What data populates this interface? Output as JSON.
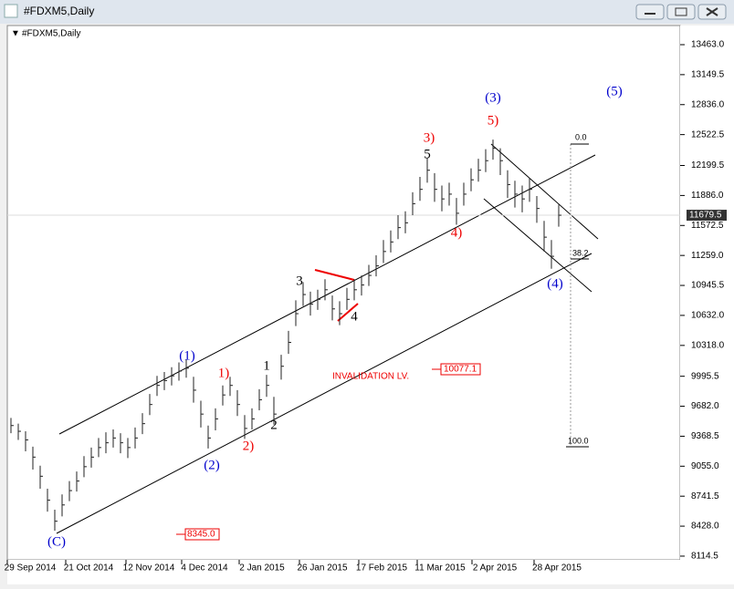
{
  "window_title": "#FDXM5,Daily",
  "chart_data": {
    "type": "ohlc",
    "title": "#FDXM5,Daily",
    "categories": [
      "29 Sep 2014",
      "21 Oct 2014",
      "12 Nov 2014",
      "4 Dec 2014",
      "2 Jan 2015",
      "26 Jan 2015",
      "17 Feb 2015",
      "11 Mar 2015",
      "2 Apr 2015",
      "28 Apr 2015"
    ],
    "close": [
      9480,
      9420,
      9330,
      9150,
      8950,
      8700,
      8480,
      8650,
      8800,
      8900,
      9050,
      9150,
      9250,
      9300,
      9350,
      9300,
      9250,
      9350,
      9500,
      9700,
      9900,
      9950,
      10000,
      10050,
      10080,
      9850,
      9600,
      9350,
      9550,
      9800,
      9900,
      9700,
      9450,
      9550,
      9750,
      9900,
      9600,
      10100,
      10350,
      10650,
      10850,
      10750,
      10800,
      10900,
      10700,
      10650,
      10800,
      10900,
      10950,
      11050,
      11150,
      11300,
      11400,
      11550,
      11600,
      11800,
      11950,
      12150,
      11950,
      11850,
      11900,
      11700,
      11900,
      12050,
      12150,
      12250,
      12380,
      12250,
      12000,
      11900,
      11850,
      11950,
      11750,
      11450,
      11250,
      11679.5
    ],
    "high": [
      9560,
      9500,
      9420,
      9260,
      9060,
      8820,
      8600,
      8760,
      8900,
      9000,
      9160,
      9250,
      9350,
      9410,
      9440,
      9400,
      9350,
      9460,
      9610,
      9810,
      10000,
      10040,
      10090,
      10140,
      10170,
      9990,
      9740,
      9480,
      9660,
      9900,
      9990,
      9850,
      9590,
      9660,
      9860,
      10010,
      9780,
      10220,
      10470,
      10790,
      10980,
      10880,
      10900,
      11010,
      10840,
      10780,
      10920,
      11010,
      11050,
      11160,
      11260,
      11420,
      11520,
      11680,
      11720,
      11920,
      12080,
      12280,
      12120,
      11990,
      12020,
      11860,
      12020,
      12170,
      12270,
      12370,
      12470,
      12380,
      12150,
      12040,
      11990,
      12070,
      11880,
      11620,
      11420,
      11790
    ],
    "low": [
      9400,
      9330,
      9210,
      9020,
      8820,
      8580,
      8380,
      8530,
      8690,
      8790,
      8940,
      9040,
      9150,
      9190,
      9250,
      9190,
      9140,
      9240,
      9390,
      9590,
      9790,
      9850,
      9900,
      9950,
      9980,
      9720,
      9460,
      9240,
      9430,
      9690,
      9790,
      9580,
      9340,
      9440,
      9640,
      9780,
      9490,
      9960,
      10230,
      10520,
      10730,
      10630,
      10690,
      10790,
      10580,
      10530,
      10690,
      10790,
      10840,
      10940,
      11040,
      11180,
      11290,
      11430,
      11490,
      11680,
      11830,
      12020,
      11820,
      11720,
      11780,
      11580,
      11780,
      11930,
      12030,
      12130,
      12260,
      12100,
      11860,
      11760,
      11710,
      11820,
      11600,
      11300,
      11120,
      11560
    ],
    "ylim": [
      8076,
      13625
    ],
    "yticks": [
      {
        "value": 13463,
        "label": "13463.0"
      },
      13149.5,
      {
        "value": 12836,
        "label": "12836.0"
      },
      12522.5,
      12199.5,
      {
        "value": 11886,
        "label": "11886.0"
      },
      11572.5,
      {
        "value": 11259,
        "label": "11259.0"
      },
      10945.5,
      {
        "value": 10632,
        "label": "10632.0"
      },
      {
        "value": 10318,
        "label": "10318.0"
      },
      9995.5,
      {
        "value": 9682,
        "label": "9682.0"
      },
      9368.5,
      {
        "value": 9055,
        "label": "9055.0"
      },
      8741.5,
      {
        "value": 8428,
        "label": "8428.0"
      },
      8114.5
    ],
    "current_price": 11679.5,
    "annotations": [
      "(C)",
      "(1)",
      "(2)",
      "1)",
      "2)",
      "1",
      "2",
      "3",
      "4",
      "5",
      "3)",
      "4)",
      "5)",
      "(3)",
      "(4)",
      "(5)"
    ],
    "levels": {
      "invalidation": "INVALIDATION LV.",
      "invalidation_price": "10077.1",
      "low_price": "8345.0",
      "fib_0": "0.0",
      "fib_38": "38.2",
      "fib_100": "100.0"
    }
  }
}
